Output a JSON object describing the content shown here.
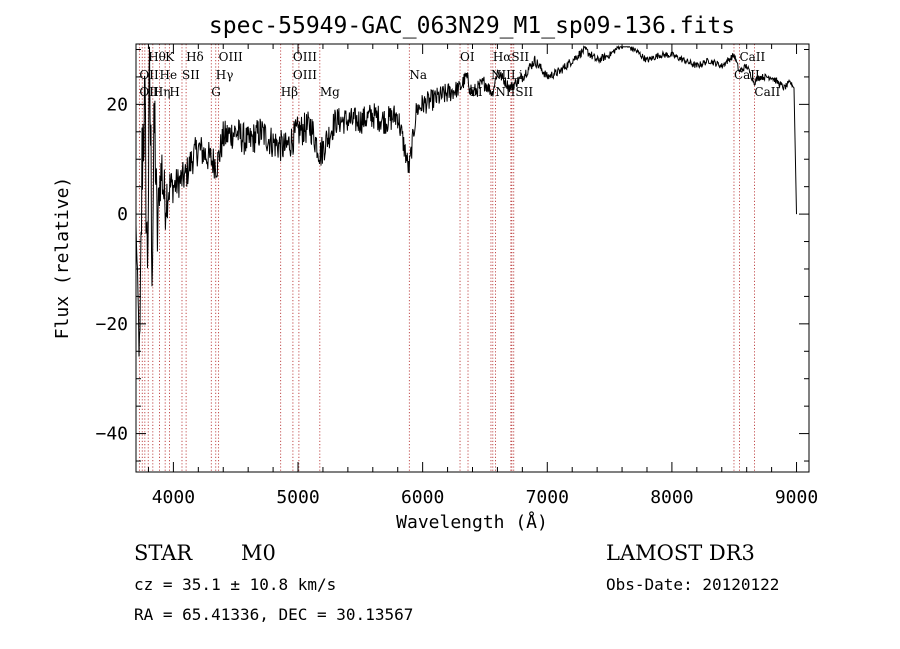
{
  "chart_data": {
    "type": "line",
    "title": "spec-55949-GAC_063N29_M1_sp09-136.fits",
    "xlabel": "Wavelength (Å)",
    "ylabel": "Flux (relative)",
    "xlim": [
      3700,
      9100
    ],
    "ylim": [
      -47,
      31
    ],
    "x_ticks": [
      4000,
      5000,
      6000,
      7000,
      8000,
      9000
    ],
    "y_ticks": [
      -40,
      -20,
      0,
      20
    ],
    "series": [
      {
        "name": "spectrum",
        "x": [
          3700,
          3730,
          3750,
          3770,
          3790,
          3810,
          3830,
          3850,
          3870,
          3890,
          3910,
          3930,
          3950,
          3970,
          4000,
          4050,
          4100,
          4150,
          4200,
          4250,
          4300,
          4350,
          4400,
          4500,
          4600,
          4700,
          4800,
          4900,
          5000,
          5100,
          5180,
          5300,
          5400,
          5500,
          5600,
          5700,
          5800,
          5890,
          5950,
          6000,
          6100,
          6200,
          6300,
          6350,
          6400,
          6500,
          6560,
          6600,
          6700,
          6800,
          6900,
          7000,
          7100,
          7200,
          7300,
          7400,
          7500,
          7600,
          7700,
          7800,
          7900,
          8000,
          8100,
          8200,
          8300,
          8400,
          8500,
          8540,
          8600,
          8660,
          8700,
          8800,
          8900,
          8950,
          8980,
          9000
        ],
        "y": [
          -2,
          -28,
          12,
          20,
          -10,
          24,
          -8,
          18,
          -5,
          6,
          8,
          2,
          4,
          5,
          5,
          6,
          7,
          10,
          12,
          11,
          10,
          9,
          14,
          15,
          13,
          15,
          13,
          12,
          15,
          16,
          11,
          17,
          17,
          17,
          18,
          17,
          18,
          8,
          19,
          20,
          21,
          22,
          23,
          25,
          22,
          24,
          22,
          26,
          23,
          25,
          28,
          25,
          26,
          28,
          30,
          28,
          29,
          31,
          30,
          28,
          29,
          29,
          28,
          27,
          28,
          27,
          29,
          26,
          27,
          24,
          25,
          25,
          23,
          24,
          23,
          0
        ],
        "noise": [
          0,
          6,
          14,
          10,
          12,
          14,
          12,
          10,
          8,
          4,
          8,
          6,
          5,
          4,
          3,
          3,
          3,
          3,
          3,
          3,
          3,
          3,
          3,
          3,
          3,
          3,
          3,
          3,
          3,
          3,
          3,
          2.5,
          2.5,
          2.5,
          2.5,
          2.5,
          2.5,
          2,
          2,
          2,
          2,
          2,
          1.5,
          1.5,
          1.5,
          1.5,
          1,
          1,
          1,
          1,
          1,
          0.8,
          0.8,
          0.8,
          0.8,
          0.8,
          0.6,
          0.6,
          0.6,
          0.6,
          0.6,
          0.6,
          0.6,
          0.6,
          0.6,
          0.6,
          0.6,
          0.6,
          0.6,
          0.6,
          0.6,
          0.6,
          0.6,
          0.6,
          0,
          0
        ]
      }
    ],
    "annotations": [
      {
        "label": "Hθ",
        "x": 3798,
        "row": 0
      },
      {
        "label": "K",
        "x": 3934,
        "row": 0
      },
      {
        "label": "Hδ",
        "x": 4102,
        "row": 0
      },
      {
        "label": "OIII",
        "x": 4363,
        "row": 0
      },
      {
        "label": "OIII",
        "x": 4959,
        "row": 0
      },
      {
        "label": "OI",
        "x": 6300,
        "row": 0
      },
      {
        "label": "HαSII",
        "x": 6563,
        "row": 0
      },
      {
        "label": "CaII",
        "x": 8542,
        "row": 0
      },
      {
        "label": "OII",
        "x": 3727,
        "row": 1
      },
      {
        "label": "He",
        "x": 3889,
        "row": 1
      },
      {
        "label": "SII",
        "x": 4069,
        "row": 1
      },
      {
        "label": "Hγ",
        "x": 4340,
        "row": 1
      },
      {
        "label": "OIII",
        "x": 4959,
        "row": 1
      },
      {
        "label": "Na",
        "x": 5893,
        "row": 1
      },
      {
        "label": "NII",
        "x": 6548,
        "row": 1
      },
      {
        "label": "Li",
        "x": 6708,
        "row": 1
      },
      {
        "label": "CaII",
        "x": 8498,
        "row": 1
      },
      {
        "label": "OII",
        "x": 3727,
        "row": 2
      },
      {
        "label": "Hη",
        "x": 3835,
        "row": 2
      },
      {
        "label": "H",
        "x": 3968,
        "row": 2
      },
      {
        "label": "G",
        "x": 4304,
        "row": 2
      },
      {
        "label": "Hβ",
        "x": 4861,
        "row": 2
      },
      {
        "label": "Mg",
        "x": 5175,
        "row": 2
      },
      {
        "label": "OI",
        "x": 6364,
        "row": 2
      },
      {
        "label": "NIISII",
        "x": 6584,
        "row": 2
      },
      {
        "label": "CaII",
        "x": 8662,
        "row": 2
      }
    ],
    "line_positions": [
      3727,
      3750,
      3771,
      3798,
      3835,
      3889,
      3934,
      3968,
      4069,
      4102,
      4304,
      4340,
      4363,
      4861,
      4959,
      5007,
      5175,
      5893,
      6300,
      6364,
      6548,
      6563,
      6584,
      6708,
      6716,
      6731,
      8498,
      8542,
      8662
    ]
  },
  "info": {
    "class_label": "STAR",
    "subclass": "M0",
    "survey": "LAMOST DR3",
    "cz_text": "cz = 35.1 ± 10.8 km/s",
    "obs_date": "Obs-Date: 20120122",
    "coords_text": "RA =  65.41336, DEC =  30.13567"
  }
}
